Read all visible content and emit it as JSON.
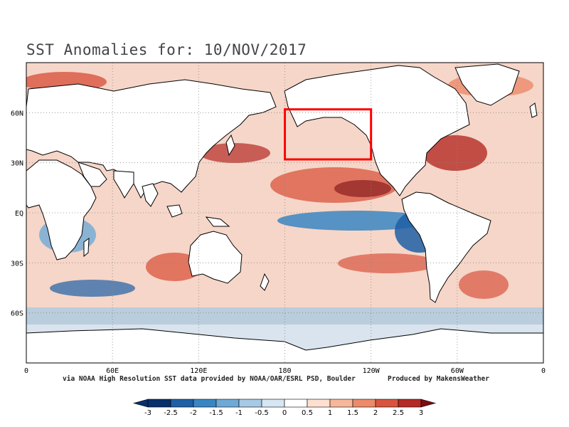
{
  "title": "SST Anomalies for: 10/NOV/2017",
  "credits": {
    "source": "via NOAA High Resolution SST data provided by NOAA/OAR/ESRL PSD, Boulder",
    "producer": "Produced by MakensWeather"
  },
  "map": {
    "projection": "cylindrical",
    "lon_range": [
      0,
      360
    ],
    "lat_range": [
      -90,
      90
    ],
    "lat_labels": [
      {
        "lat": 60,
        "label": "60N"
      },
      {
        "lat": 30,
        "label": "30N"
      },
      {
        "lat": 0,
        "label": "EQ"
      },
      {
        "lat": -30,
        "label": "30S"
      },
      {
        "lat": -60,
        "label": "60S"
      }
    ],
    "lon_labels": [
      {
        "lon": 0,
        "label": "0"
      },
      {
        "lon": 60,
        "label": "60E"
      },
      {
        "lon": 120,
        "label": "120E"
      },
      {
        "lon": 180,
        "label": "180"
      },
      {
        "lon": 240,
        "label": "120W"
      },
      {
        "lon": 300,
        "label": "60W"
      },
      {
        "lon": 360,
        "label": "0"
      }
    ],
    "gridlines": "dotted",
    "highlight_box": {
      "lon_range": [
        180,
        240
      ],
      "lat_range": [
        32,
        62
      ],
      "color": "#ff0000"
    }
  },
  "colorbar": {
    "ticks": [
      "-3",
      "-2.5",
      "-2",
      "-1.5",
      "-1",
      "-0.5",
      "0",
      "0.5",
      "1",
      "1.5",
      "2",
      "2.5",
      "3"
    ],
    "colors": [
      "#08306b",
      "#1f5fa5",
      "#3a86c2",
      "#6faad6",
      "#a6c9e4",
      "#d6e6f2",
      "#ffffff",
      "#fde0d0",
      "#f7b79a",
      "#ec8a6a",
      "#d9543e",
      "#b52a24",
      "#7a0d12"
    ]
  }
}
